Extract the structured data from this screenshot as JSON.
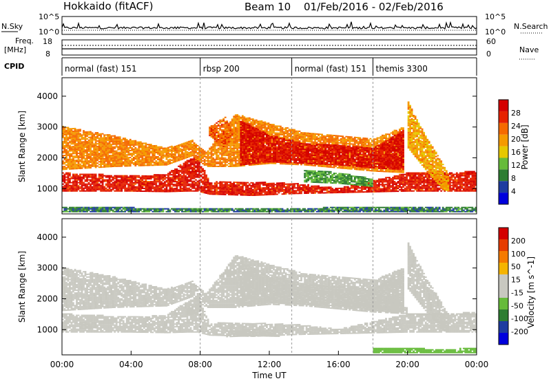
{
  "header": {
    "station": "Hokkaido (fitACF)",
    "beam": "Beam 10",
    "dates": "01/Feb/2016 - 02/Feb/2016"
  },
  "side_labels": {
    "nsky": "N.Sky",
    "freq_line1": "Freq.",
    "freq_line2": "[MHz]",
    "cpid": "CPID",
    "nsearch": "N.Search",
    "nave": "Nave"
  },
  "noise_panel": {
    "left_ticks": [
      "10^5",
      "10^0"
    ],
    "right_ticks": [
      "10^5",
      "10^0"
    ]
  },
  "freq_panel": {
    "left_ticks": [
      "18",
      "8"
    ],
    "right_ticks": [
      "60",
      "0"
    ]
  },
  "cpid_panel": {
    "segments": [
      {
        "label": "normal (fast) 151",
        "start_hour": 0
      },
      {
        "label": "rbsp 200",
        "start_hour": 8.0
      },
      {
        "label": "normal (fast) 151",
        "start_hour": 13.3
      },
      {
        "label": "themis 3300",
        "start_hour": 18.0
      }
    ]
  },
  "colors": {
    "power_scale": [
      "#0000dd",
      "#1e3ca0",
      "#2e7d32",
      "#66bb3a",
      "#e6c800",
      "#f59a00",
      "#f56a00",
      "#e62200",
      "#d40000"
    ],
    "velocity_scale": [
      "#0000dd",
      "#1e3ca0",
      "#2e7d32",
      "#66bb3a",
      "#c8c8c0",
      "#c8c8c0",
      "#f5b400",
      "#f57a00",
      "#e63c00",
      "#d40000"
    ]
  },
  "chart_data": [
    {
      "type": "heatmap",
      "title": "Power",
      "xlabel": "Time UT",
      "ylabel": "Slant Range [km]",
      "xlim_hours": [
        0,
        24
      ],
      "xticks": [
        "00:00",
        "04:00",
        "08:00",
        "12:00",
        "16:00",
        "20:00",
        "00:00"
      ],
      "ylim": [
        180,
        4600
      ],
      "yticks": [
        "1000",
        "2000",
        "3000",
        "4000"
      ],
      "colorbar": {
        "label": "Power [dB]",
        "ticks": [
          "28",
          "24",
          "20",
          "16",
          "12",
          "8",
          "4"
        ],
        "range": [
          0,
          30
        ]
      },
      "bands": [
        {
          "lo": [
            [
              0,
              900
            ],
            [
              4,
              900
            ],
            [
              6,
              880
            ],
            [
              7.2,
              900
            ],
            [
              7.8,
              900
            ],
            [
              8.5,
              800
            ],
            [
              11,
              760
            ],
            [
              13.5,
              820
            ],
            [
              16,
              850
            ],
            [
              20,
              900
            ],
            [
              22,
              900
            ],
            [
              24,
              900
            ]
          ],
          "hi": [
            [
              0,
              1500
            ],
            [
              4,
              1400
            ],
            [
              6,
              1450
            ],
            [
              7.2,
              1900
            ],
            [
              7.8,
              2050
            ],
            [
              8.5,
              1200
            ],
            [
              11,
              1200
            ],
            [
              13.5,
              1150
            ],
            [
              16,
              1000
            ],
            [
              20,
              1500
            ],
            [
              22,
              1500
            ],
            [
              24,
              1550
            ]
          ],
          "value": 26
        },
        {
          "lo": [
            [
              0,
              1600
            ],
            [
              3,
              1700
            ],
            [
              6,
              1750
            ],
            [
              7.5,
              2050
            ],
            [
              8.3,
              1700
            ],
            [
              10,
              1700
            ],
            [
              12,
              1800
            ],
            [
              14,
              1750
            ],
            [
              18,
              1550
            ],
            [
              19.8,
              1500
            ]
          ],
          "hi": [
            [
              0,
              3000
            ],
            [
              3,
              2700
            ],
            [
              6,
              2300
            ],
            [
              7.5,
              2550
            ],
            [
              8.3,
              2150
            ],
            [
              10,
              3400
            ],
            [
              12,
              3100
            ],
            [
              14,
              2800
            ],
            [
              18,
              2600
            ],
            [
              19.8,
              3000
            ]
          ],
          "value": 20
        },
        {
          "lo": [
            [
              10.3,
              1750
            ],
            [
              12,
              1850
            ],
            [
              14,
              1800
            ],
            [
              16,
              1750
            ],
            [
              18,
              1650
            ],
            [
              19.8,
              1600
            ]
          ],
          "hi": [
            [
              10.3,
              3200
            ],
            [
              12,
              2700
            ],
            [
              14,
              2450
            ],
            [
              16,
              2400
            ],
            [
              18,
              2300
            ],
            [
              19.8,
              2900
            ]
          ],
          "value": 27
        },
        {
          "lo": [
            [
              8.5,
              2700
            ],
            [
              9.4,
              2300
            ],
            [
              9.8,
              2700
            ]
          ],
          "hi": [
            [
              8.5,
              3000
            ],
            [
              9.4,
              3300
            ],
            [
              9.8,
              2900
            ]
          ],
          "value": 22
        },
        {
          "lo": [
            [
              20.0,
              2300
            ],
            [
              21.0,
              1600
            ],
            [
              22.0,
              950
            ],
            [
              22.4,
              900
            ]
          ],
          "hi": [
            [
              20.0,
              3800
            ],
            [
              21.0,
              2700
            ],
            [
              22.0,
              1800
            ],
            [
              22.4,
              1400
            ]
          ],
          "value": 18
        },
        {
          "lo": [
            [
              14,
              1200
            ],
            [
              16,
              1150
            ],
            [
              18,
              1050
            ]
          ],
          "hi": [
            [
              14,
              1600
            ],
            [
              16,
              1500
            ],
            [
              18,
              1300
            ]
          ],
          "value": 10
        },
        {
          "lo": [
            [
              0,
              230
            ],
            [
              6,
              230
            ],
            [
              12,
              230
            ],
            [
              18,
              230
            ],
            [
              24,
              230
            ]
          ],
          "hi": [
            [
              0,
              400
            ],
            [
              6,
              350
            ],
            [
              12,
              330
            ],
            [
              18,
              400
            ],
            [
              24,
              380
            ]
          ],
          "value": 8
        }
      ]
    },
    {
      "type": "heatmap",
      "title": "Velocity",
      "xlabel": "Time UT",
      "ylabel": "Slant Range [km]",
      "xlim_hours": [
        0,
        24
      ],
      "xticks": [
        "00:00",
        "04:00",
        "08:00",
        "12:00",
        "16:00",
        "20:00",
        "00:00"
      ],
      "ylim": [
        180,
        4600
      ],
      "yticks": [
        "1000",
        "2000",
        "3000",
        "4000"
      ],
      "colorbar": {
        "label": "Velocity [m s^-1]",
        "ticks": [
          "200",
          "100",
          "50",
          "15",
          "-15",
          "-50",
          "-100",
          "-200"
        ],
        "range": [
          -250,
          250
        ]
      },
      "bands": [
        {
          "lo": [
            [
              0,
              900
            ],
            [
              4,
              900
            ],
            [
              6,
              880
            ],
            [
              7.2,
              900
            ],
            [
              7.8,
              900
            ],
            [
              8.5,
              800
            ],
            [
              11,
              760
            ],
            [
              13.5,
              820
            ],
            [
              16,
              850
            ],
            [
              20,
              900
            ],
            [
              22,
              900
            ],
            [
              24,
              900
            ]
          ],
          "hi": [
            [
              0,
              1500
            ],
            [
              4,
              1400
            ],
            [
              6,
              1450
            ],
            [
              7.2,
              1900
            ],
            [
              7.8,
              2050
            ],
            [
              8.5,
              1200
            ],
            [
              11,
              1200
            ],
            [
              13.5,
              1150
            ],
            [
              16,
              1000
            ],
            [
              20,
              1500
            ],
            [
              22,
              1500
            ],
            [
              24,
              1550
            ]
          ],
          "value": 0
        },
        {
          "lo": [
            [
              0,
              1600
            ],
            [
              3,
              1700
            ],
            [
              6,
              1750
            ],
            [
              7.5,
              2050
            ],
            [
              8.3,
              1700
            ],
            [
              10,
              1700
            ],
            [
              12,
              1800
            ],
            [
              14,
              1750
            ],
            [
              18,
              1550
            ],
            [
              19.8,
              1500
            ]
          ],
          "hi": [
            [
              0,
              3000
            ],
            [
              3,
              2700
            ],
            [
              6,
              2300
            ],
            [
              7.5,
              2550
            ],
            [
              8.3,
              2150
            ],
            [
              10,
              3400
            ],
            [
              12,
              3100
            ],
            [
              14,
              2800
            ],
            [
              18,
              2600
            ],
            [
              19.8,
              3000
            ]
          ],
          "value": 0
        },
        {
          "lo": [
            [
              10.3,
              1750
            ],
            [
              12,
              1850
            ],
            [
              14,
              1800
            ],
            [
              16,
              1750
            ],
            [
              18,
              1650
            ],
            [
              19.8,
              1600
            ]
          ],
          "hi": [
            [
              10.3,
              3200
            ],
            [
              12,
              2700
            ],
            [
              14,
              2450
            ],
            [
              16,
              2400
            ],
            [
              18,
              2300
            ],
            [
              19.8,
              2900
            ]
          ],
          "value": 0
        },
        {
          "lo": [
            [
              20.0,
              2300
            ],
            [
              21.0,
              1600
            ],
            [
              22.0,
              950
            ],
            [
              22.4,
              900
            ]
          ],
          "hi": [
            [
              20.0,
              3800
            ],
            [
              21.0,
              2700
            ],
            [
              22.0,
              1800
            ],
            [
              22.4,
              1400
            ]
          ],
          "value": 40
        },
        {
          "lo": [
            [
              16,
              1700
            ],
            [
              18,
              1600
            ],
            [
              20,
              1500
            ]
          ],
          "hi": [
            [
              16,
              1900
            ],
            [
              18,
              1800
            ],
            [
              20,
              1750
            ]
          ],
          "value": 45
        },
        {
          "lo": [
            [
              9.5,
              750
            ],
            [
              11,
              780
            ],
            [
              12.5,
              760
            ]
          ],
          "hi": [
            [
              9.5,
              950
            ],
            [
              11,
              1000
            ],
            [
              12.5,
              950
            ]
          ],
          "value": -45
        },
        {
          "lo": [
            [
              7.3,
              1450
            ],
            [
              7.7,
              1500
            ],
            [
              8.0,
              1600
            ]
          ],
          "hi": [
            [
              7.3,
              1750
            ],
            [
              7.7,
              1800
            ],
            [
              8.0,
              1900
            ]
          ],
          "value": -40
        },
        {
          "lo": [
            [
              18,
              230
            ],
            [
              20,
              230
            ],
            [
              22,
              230
            ],
            [
              24,
              230
            ]
          ],
          "hi": [
            [
              18,
              400
            ],
            [
              20,
              380
            ],
            [
              22,
              350
            ],
            [
              24,
              380
            ]
          ],
          "value": -60
        },
        {
          "lo": [
            [
              1,
              1000
            ],
            [
              2,
              1050
            ]
          ],
          "hi": [
            [
              1,
              1200
            ],
            [
              2,
              1200
            ]
          ],
          "value": 40
        }
      ]
    }
  ]
}
